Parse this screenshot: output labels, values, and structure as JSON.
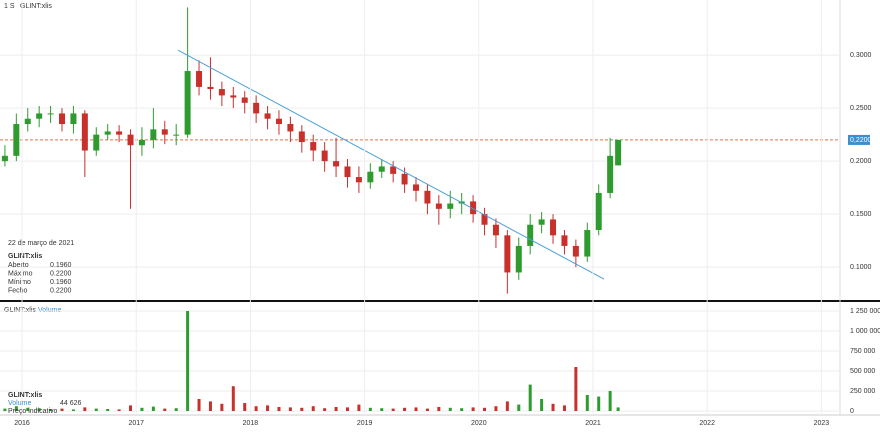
{
  "chart_data": [
    {
      "type": "candlestick",
      "interval": "1 S",
      "symbol": "GLINT:xlis",
      "x": [
        2015.85,
        2015.95,
        2016.05,
        2016.15,
        2016.25,
        2016.35,
        2016.45,
        2016.55,
        2016.65,
        2016.75,
        2016.85,
        2016.95,
        2017.05,
        2017.15,
        2017.25,
        2017.35,
        2017.45,
        2017.55,
        2017.65,
        2017.75,
        2017.85,
        2017.95,
        2018.05,
        2018.15,
        2018.25,
        2018.35,
        2018.45,
        2018.55,
        2018.65,
        2018.75,
        2018.85,
        2018.95,
        2019.05,
        2019.15,
        2019.25,
        2019.35,
        2019.45,
        2019.55,
        2019.65,
        2019.75,
        2019.85,
        2019.95,
        2020.05,
        2020.15,
        2020.25,
        2020.35,
        2020.45,
        2020.55,
        2020.65,
        2020.75,
        2020.85,
        2020.95,
        2021.05,
        2021.15,
        2021.22
      ],
      "open": [
        0.2,
        0.205,
        0.235,
        0.24,
        0.245,
        0.245,
        0.235,
        0.245,
        0.21,
        0.225,
        0.228,
        0.225,
        0.215,
        0.22,
        0.23,
        0.225,
        0.225,
        0.285,
        0.27,
        0.268,
        0.262,
        0.26,
        0.255,
        0.245,
        0.24,
        0.235,
        0.228,
        0.218,
        0.21,
        0.2,
        0.195,
        0.185,
        0.18,
        0.19,
        0.195,
        0.188,
        0.178,
        0.172,
        0.16,
        0.155,
        0.16,
        0.162,
        0.15,
        0.14,
        0.13,
        0.095,
        0.12,
        0.14,
        0.145,
        0.13,
        0.12,
        0.11,
        0.135,
        0.17,
        0.196
      ],
      "high": [
        0.215,
        0.245,
        0.25,
        0.252,
        0.252,
        0.25,
        0.252,
        0.248,
        0.232,
        0.235,
        0.234,
        0.23,
        0.232,
        0.25,
        0.238,
        0.235,
        0.345,
        0.295,
        0.298,
        0.275,
        0.27,
        0.266,
        0.262,
        0.252,
        0.248,
        0.242,
        0.234,
        0.225,
        0.218,
        0.222,
        0.202,
        0.195,
        0.198,
        0.202,
        0.2,
        0.194,
        0.185,
        0.178,
        0.168,
        0.172,
        0.17,
        0.168,
        0.156,
        0.146,
        0.135,
        0.128,
        0.15,
        0.152,
        0.15,
        0.135,
        0.126,
        0.142,
        0.178,
        0.222,
        0.22
      ],
      "low": [
        0.195,
        0.2,
        0.228,
        0.232,
        0.236,
        0.228,
        0.226,
        0.185,
        0.205,
        0.22,
        0.218,
        0.155,
        0.205,
        0.212,
        0.216,
        0.215,
        0.222,
        0.262,
        0.258,
        0.252,
        0.25,
        0.245,
        0.236,
        0.23,
        0.225,
        0.218,
        0.208,
        0.2,
        0.19,
        0.185,
        0.175,
        0.17,
        0.174,
        0.184,
        0.18,
        0.17,
        0.162,
        0.15,
        0.14,
        0.146,
        0.15,
        0.142,
        0.13,
        0.118,
        0.075,
        0.088,
        0.112,
        0.132,
        0.122,
        0.112,
        0.1,
        0.105,
        0.13,
        0.165,
        0.196
      ],
      "close": [
        0.205,
        0.235,
        0.24,
        0.245,
        0.245,
        0.235,
        0.245,
        0.21,
        0.225,
        0.228,
        0.225,
        0.215,
        0.22,
        0.23,
        0.225,
        0.225,
        0.285,
        0.27,
        0.268,
        0.262,
        0.26,
        0.255,
        0.245,
        0.24,
        0.235,
        0.228,
        0.218,
        0.21,
        0.2,
        0.195,
        0.185,
        0.18,
        0.19,
        0.195,
        0.188,
        0.178,
        0.172,
        0.16,
        0.155,
        0.16,
        0.162,
        0.15,
        0.14,
        0.13,
        0.095,
        0.12,
        0.14,
        0.145,
        0.13,
        0.12,
        0.11,
        0.135,
        0.17,
        0.205,
        0.22
      ],
      "up_color": "#2e9b2e",
      "down_color": "#c8302c",
      "xlim": [
        2015.807,
        2023.163
      ],
      "ylim": [
        0.069,
        0.352
      ],
      "yticks": [
        {
          "value": 0.1,
          "label": "0.1000"
        },
        {
          "value": 0.15,
          "label": "0.1500"
        },
        {
          "value": 0.2,
          "label": "0.2000"
        },
        {
          "value": 0.25,
          "label": "0.2500"
        },
        {
          "value": 0.3,
          "label": "0.3000"
        }
      ],
      "grid": true,
      "price_level": {
        "value": 0.22,
        "label": "0,2200",
        "color": "#e0704a"
      },
      "trendline": {
        "x": [
          2017.366,
          2021.096
        ],
        "y": [
          0.3047,
          0.0887
        ],
        "color": "#4a9fd8"
      },
      "info": {
        "date": "22 de março de 2021",
        "symbol": "GLINT:xlis",
        "rows": [
          {
            "label": "Aberto",
            "value": "0.1960"
          },
          {
            "label": "Máximo",
            "value": "0.2200"
          },
          {
            "label": "Mínimo",
            "value": "0.1960"
          },
          {
            "label": "Fecho",
            "value": "0.2200"
          }
        ]
      }
    },
    {
      "type": "volume",
      "symbol": "GLINT:xlis",
      "title": "Volume",
      "x": [
        2015.85,
        2015.95,
        2016.05,
        2016.15,
        2016.25,
        2016.35,
        2016.45,
        2016.55,
        2016.65,
        2016.75,
        2016.85,
        2016.95,
        2017.05,
        2017.15,
        2017.25,
        2017.35,
        2017.45,
        2017.55,
        2017.65,
        2017.75,
        2017.85,
        2017.95,
        2018.05,
        2018.15,
        2018.25,
        2018.35,
        2018.45,
        2018.55,
        2018.65,
        2018.75,
        2018.85,
        2018.95,
        2019.05,
        2019.15,
        2019.25,
        2019.35,
        2019.45,
        2019.55,
        2019.65,
        2019.75,
        2019.85,
        2019.95,
        2020.05,
        2020.15,
        2020.25,
        2020.35,
        2020.45,
        2020.55,
        2020.65,
        2020.75,
        2020.85,
        2020.95,
        2021.05,
        2021.15,
        2021.22
      ],
      "values": [
        30000,
        60000,
        40000,
        35000,
        25000,
        30000,
        20000,
        45000,
        30000,
        25000,
        20000,
        70000,
        40000,
        55000,
        30000,
        35000,
        1250000,
        150000,
        120000,
        90000,
        310000,
        100000,
        60000,
        70000,
        50000,
        45000,
        40000,
        60000,
        35000,
        50000,
        45000,
        80000,
        40000,
        35000,
        30000,
        40000,
        45000,
        30000,
        50000,
        40000,
        35000,
        45000,
        40000,
        60000,
        120000,
        80000,
        330000,
        150000,
        90000,
        70000,
        550000,
        200000,
        180000,
        250000,
        44626
      ],
      "xlim": [
        2015.807,
        2023.163
      ],
      "xticks": [
        2016,
        2017,
        2018,
        2019,
        2020,
        2021,
        2022,
        2023
      ],
      "ylim": [
        0,
        1350000
      ],
      "yticks": [
        {
          "value": 0,
          "label": "0"
        },
        {
          "value": 250000,
          "label": "250 000"
        },
        {
          "value": 500000,
          "label": "500 000"
        },
        {
          "value": 750000,
          "label": "750 000"
        },
        {
          "value": 1000000,
          "label": "1 000 000"
        },
        {
          "value": 1250000,
          "label": "1 250 000"
        }
      ],
      "legend": {
        "symbol": "GLINT:xlis",
        "name": "Volume",
        "value": "44 626",
        "note": "Preço indicativo"
      }
    }
  ]
}
